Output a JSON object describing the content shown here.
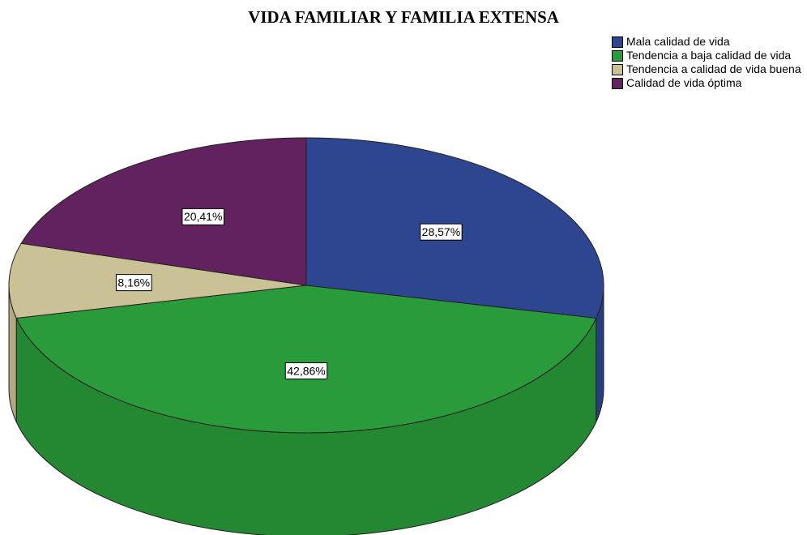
{
  "chart_data": {
    "type": "pie3d",
    "title": "VIDA FAMILIAR Y FAMILIA EXTENSA",
    "categories": [
      "Mala calidad de vida",
      "Tendencia a baja calidad de vida",
      "Tendencia a calidad de vida buena",
      "Calidad de vida óptima"
    ],
    "values": [
      28.57,
      42.86,
      8.16,
      20.41
    ],
    "value_labels": [
      "28,57%",
      "42,86%",
      "8,16%",
      "20,41%"
    ],
    "colors": [
      "#2e468f",
      "#2a9b3b",
      "#cbc196",
      "#62215f"
    ],
    "legend": "upper right"
  }
}
